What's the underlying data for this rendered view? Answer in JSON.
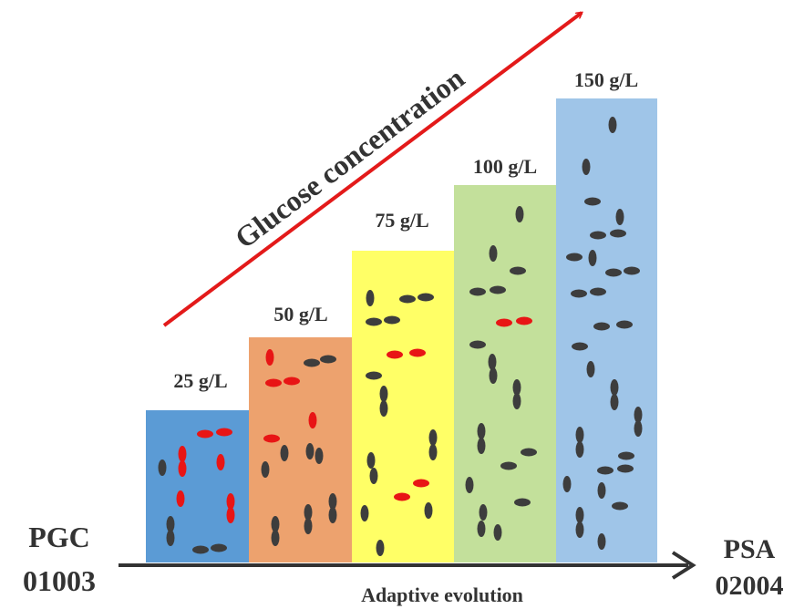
{
  "title": "Glucose concentration",
  "stages": [
    {
      "label": "25 g/L"
    },
    {
      "label": "50 g/L"
    },
    {
      "label": "75 g/L"
    },
    {
      "label": "100 g/L"
    },
    {
      "label": "150 g/L"
    }
  ],
  "start": {
    "line1": "PGC",
    "line2": "01003"
  },
  "end": {
    "line1": "PSA",
    "line2": "02004"
  },
  "axis_label": "Adaptive evolution"
}
